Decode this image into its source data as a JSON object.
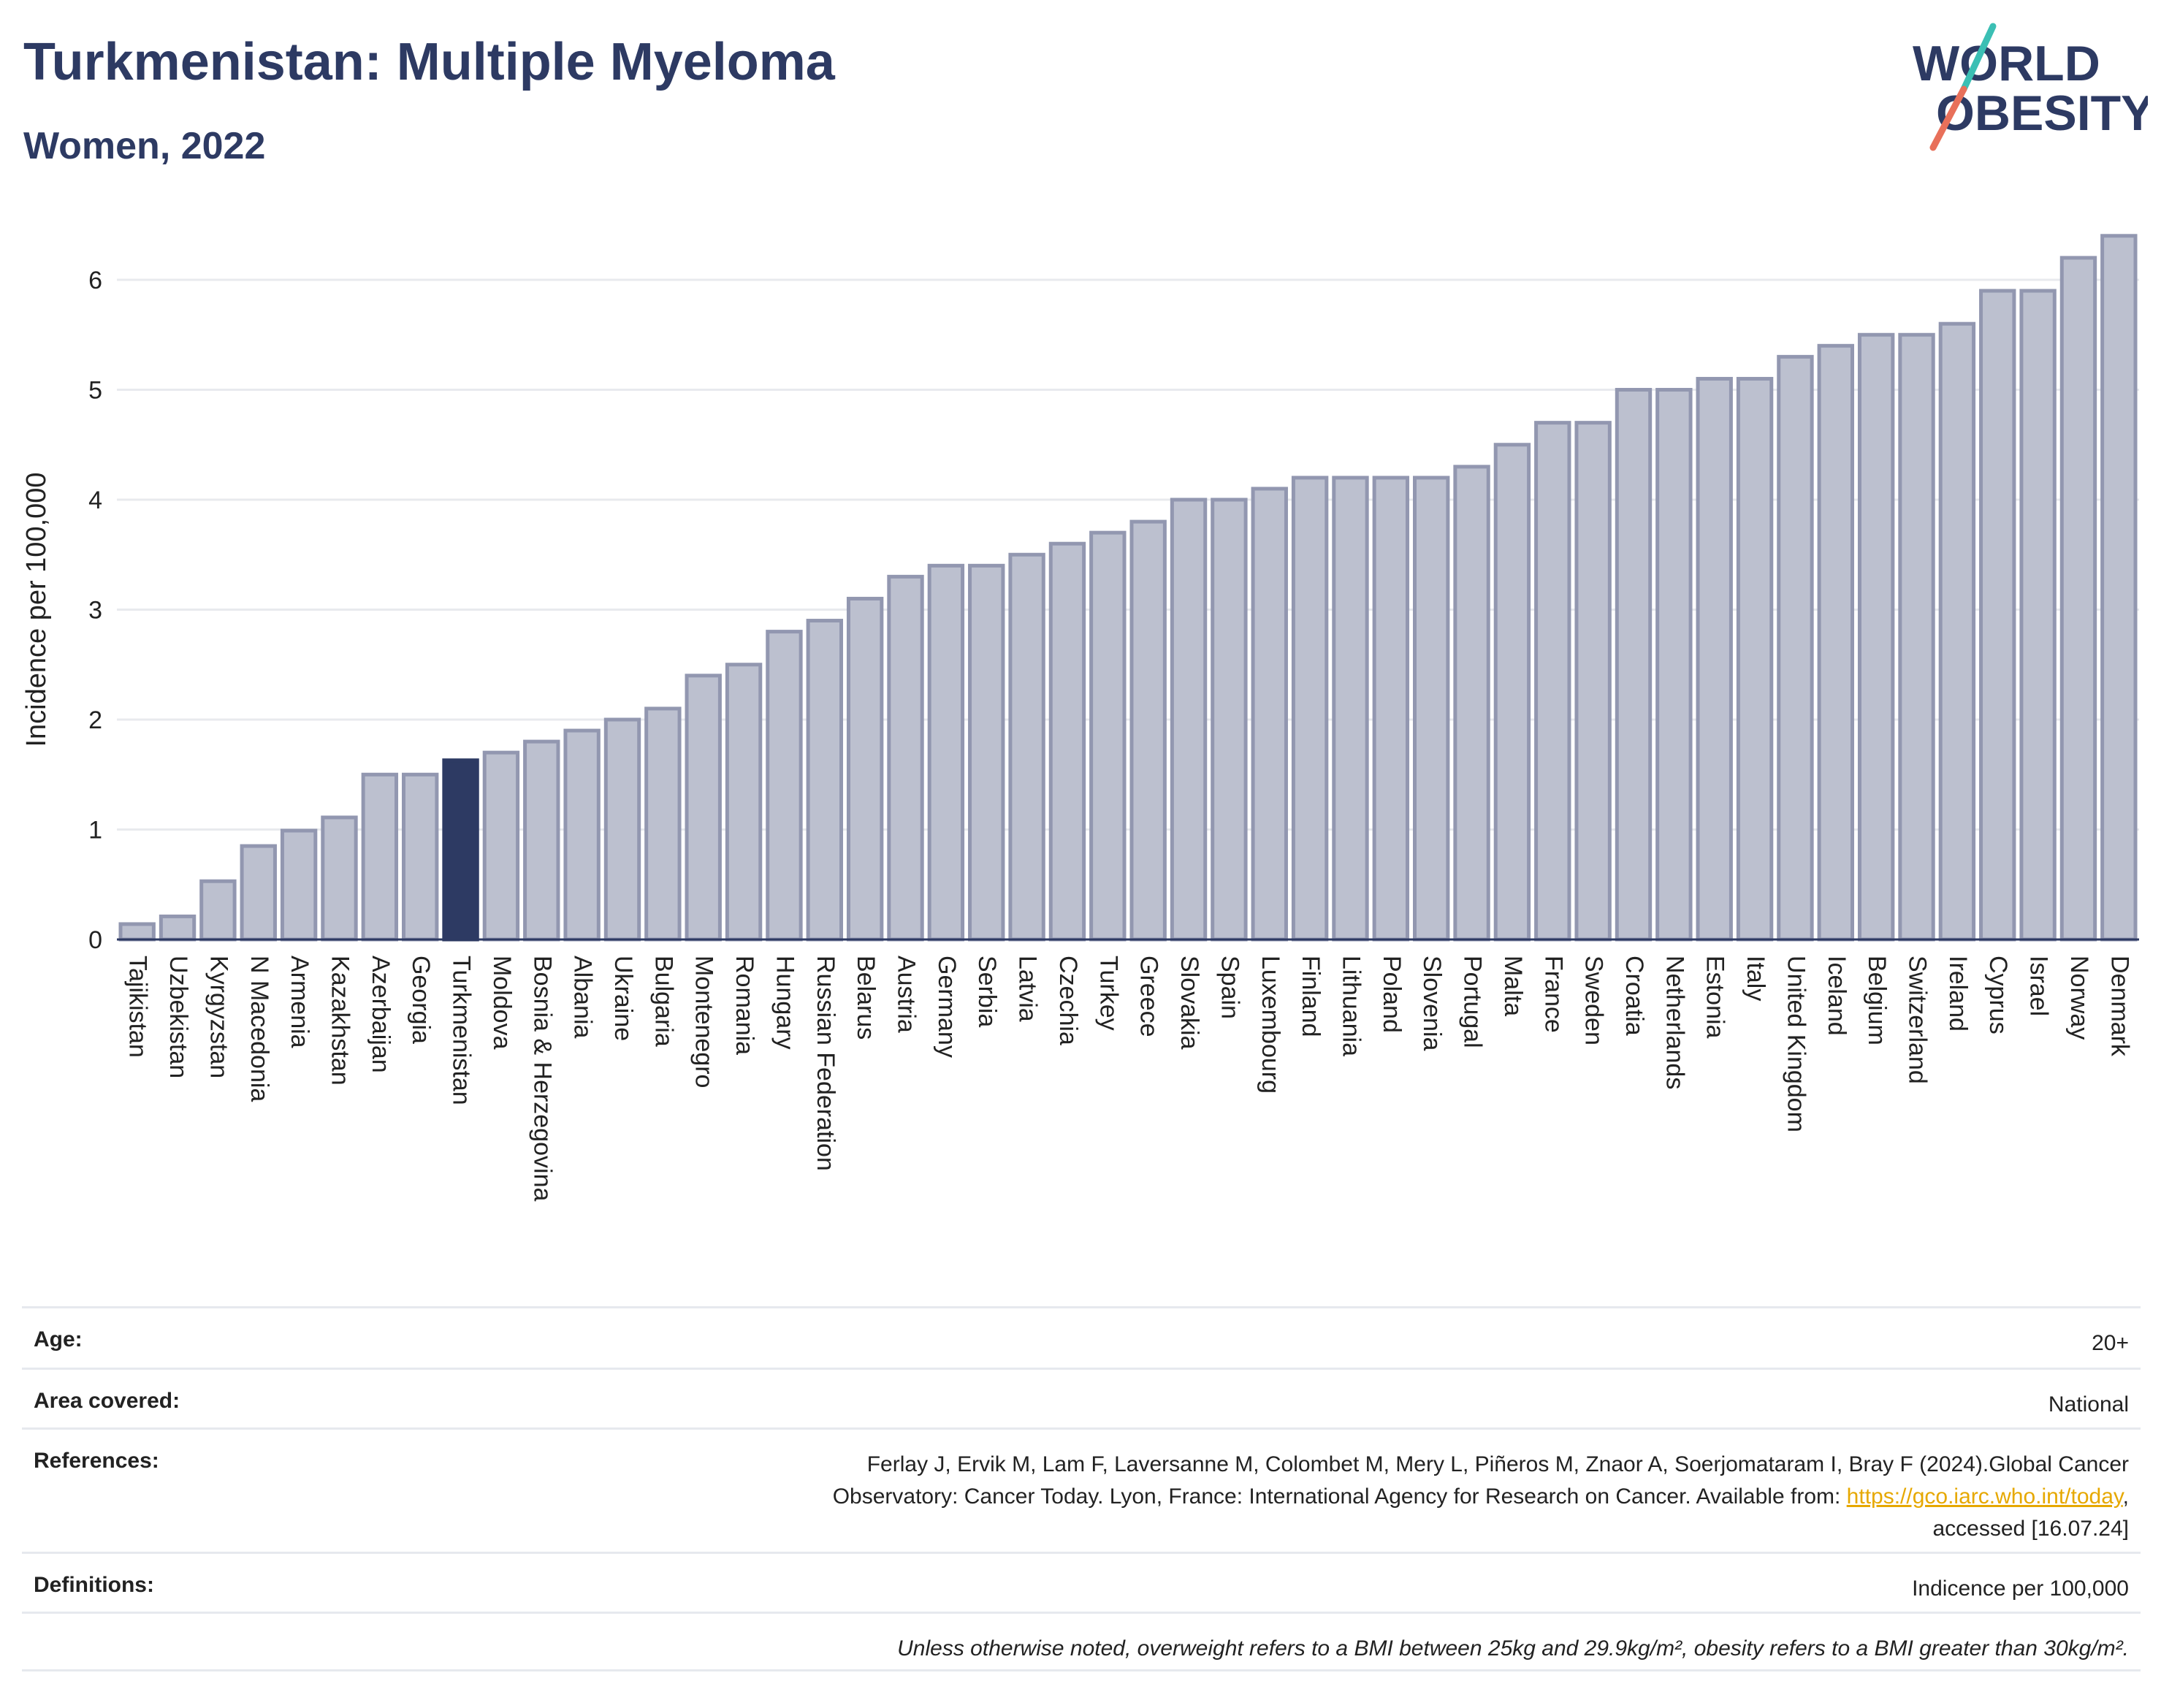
{
  "header": {
    "title": "Turkmenistan: Multiple Myeloma",
    "subtitle": "Women, 2022",
    "logo_line1": "WORLD",
    "logo_line2": "OBESITY"
  },
  "colors": {
    "bar": "#bcc0cf",
    "bar_border": "#9297b0",
    "highlight": "#2d3a63",
    "title": "#2d3a63",
    "logo_slash_top": "#3bbfb4",
    "logo_slash_bottom": "#e8705a",
    "link": "#e6a800"
  },
  "chart_data": {
    "type": "bar",
    "ylabel": "Incidence per 100,000",
    "ylim": [
      0,
      6.5
    ],
    "yticks": [
      "0",
      "1",
      "2",
      "3",
      "4",
      "5",
      "6"
    ],
    "grid": true,
    "highlight": "Turkmenistan",
    "categories": [
      "Tajikistan",
      "Uzbekistan",
      "Kyrgyzstan",
      "N Macedonia",
      "Armenia",
      "Kazakhstan",
      "Azerbaijan",
      "Georgia",
      "Turkmenistan",
      "Moldova",
      "Bosnia & Herzegovina",
      "Albania",
      "Ukraine",
      "Bulgaria",
      "Montenegro",
      "Romania",
      "Hungary",
      "Russian Federation",
      "Belarus",
      "Austria",
      "Germany",
      "Serbia",
      "Latvia",
      "Czechia",
      "Turkey",
      "Greece",
      "Slovakia",
      "Spain",
      "Luxembourg",
      "Finland",
      "Lithuania",
      "Poland",
      "Slovenia",
      "Portugal",
      "Malta",
      "France",
      "Sweden",
      "Croatia",
      "Netherlands",
      "Estonia",
      "Italy",
      "United Kingdom",
      "Iceland",
      "Belgium",
      "Switzerland",
      "Ireland",
      "Cyprus",
      "Israel",
      "Norway",
      "Denmark"
    ],
    "values": [
      0.14,
      0.21,
      0.53,
      0.85,
      0.99,
      1.11,
      1.5,
      1.5,
      1.63,
      1.7,
      1.8,
      1.9,
      2.0,
      2.1,
      2.4,
      2.5,
      2.8,
      2.9,
      3.1,
      3.3,
      3.4,
      3.4,
      3.5,
      3.6,
      3.7,
      3.8,
      4.0,
      4.0,
      4.1,
      4.2,
      4.2,
      4.2,
      4.2,
      4.3,
      4.5,
      4.7,
      4.7,
      5.0,
      5.0,
      5.1,
      5.1,
      5.3,
      5.4,
      5.5,
      5.5,
      5.6,
      5.9,
      5.9,
      6.2,
      6.4
    ]
  },
  "info": {
    "age_label": "Age:",
    "age_value": "20+",
    "area_label": "Area covered:",
    "area_value": "National",
    "references_label": "References:",
    "references_line1": "Ferlay J, Ervik M, Lam F, Laversanne M, Colombet M, Mery L, Piñeros M, Znaor A, Soerjomataram I, Bray F (2024).Global Cancer",
    "references_line2": "Observatory: Cancer Today. Lyon, France: International Agency for Research on Cancer. Available from: ",
    "references_link": "https://gco.iarc.who.int/today",
    "references_line3": "accessed [16.07.24]",
    "definitions_label": "Definitions:",
    "definitions_value": "Indicence per 100,000",
    "note": "Unless otherwise noted, overweight refers to a BMI between 25kg and 29.9kg/m², obesity refers to a BMI greater than 30kg/m²."
  }
}
